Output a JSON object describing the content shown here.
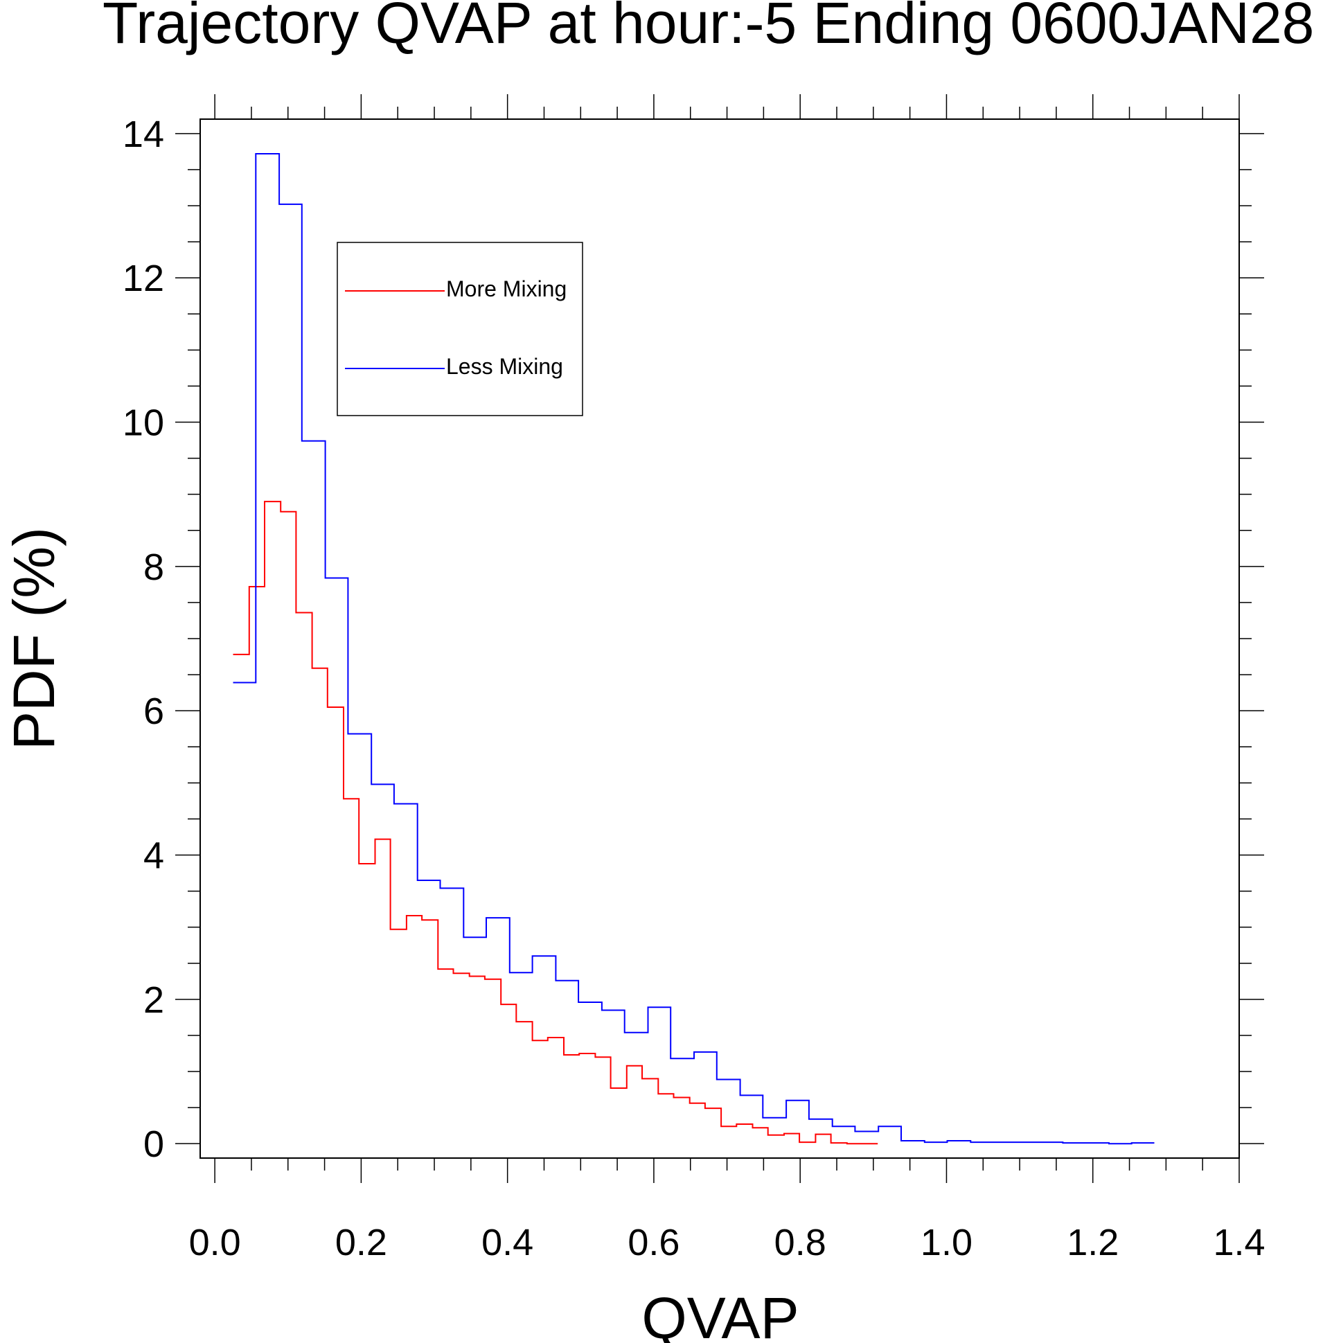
{
  "chart_data": {
    "type": "line",
    "step": true,
    "title": "Trajectory QVAP at hour:-5 Ending 0600JAN28",
    "xlabel": "QVAP",
    "ylabel": "PDF (%)",
    "xlim": [
      -0.02,
      1.4
    ],
    "ylim": [
      -0.2,
      14.2
    ],
    "xticks": [
      "0.0",
      "0.2",
      "0.4",
      "0.6",
      "0.8",
      "1.0",
      "1.2",
      "1.4"
    ],
    "yticks": [
      "0",
      "2",
      "4",
      "6",
      "8",
      "10",
      "12",
      "14"
    ],
    "grid": false,
    "legend_position": "top-left",
    "series": [
      {
        "name": "More Mixing",
        "color": "#ff0000",
        "x": [
          0.025,
          0.047,
          0.068,
          0.09,
          0.111,
          0.133,
          0.154,
          0.176,
          0.197,
          0.219,
          0.24,
          0.262,
          0.283,
          0.305,
          0.326,
          0.348,
          0.369,
          0.391,
          0.412,
          0.434,
          0.455,
          0.477,
          0.498,
          0.52,
          0.541,
          0.563,
          0.584,
          0.606,
          0.627,
          0.649,
          0.67,
          0.692,
          0.713,
          0.735,
          0.756,
          0.778,
          0.799,
          0.821,
          0.842,
          0.864,
          0.885
        ],
        "values": [
          6.78,
          7.72,
          8.9,
          8.76,
          7.36,
          6.59,
          6.05,
          4.78,
          3.88,
          4.22,
          2.97,
          3.16,
          3.1,
          2.42,
          2.36,
          2.32,
          2.28,
          1.93,
          1.69,
          1.43,
          1.47,
          1.23,
          1.25,
          1.2,
          0.77,
          1.08,
          0.9,
          0.69,
          0.64,
          0.56,
          0.49,
          0.24,
          0.27,
          0.22,
          0.12,
          0.14,
          0.02,
          0.13,
          0.01,
          0.0,
          0.0
        ]
      },
      {
        "name": "Less Mixing",
        "color": "#0000ff",
        "x": [
          0.025,
          0.056,
          0.088,
          0.119,
          0.151,
          0.182,
          0.214,
          0.245,
          0.277,
          0.308,
          0.34,
          0.371,
          0.403,
          0.434,
          0.466,
          0.497,
          0.529,
          0.56,
          0.592,
          0.623,
          0.655,
          0.686,
          0.718,
          0.749,
          0.781,
          0.812,
          0.844,
          0.875,
          0.907,
          0.938,
          0.97,
          1.001,
          1.033,
          1.064,
          1.096,
          1.127,
          1.159,
          1.19,
          1.222,
          1.253
        ],
        "values": [
          6.39,
          13.72,
          13.02,
          9.74,
          7.84,
          5.68,
          4.98,
          4.71,
          3.65,
          3.54,
          2.86,
          3.13,
          2.37,
          2.6,
          2.26,
          1.96,
          1.85,
          1.54,
          1.89,
          1.18,
          1.27,
          0.89,
          0.67,
          0.36,
          0.6,
          0.34,
          0.24,
          0.17,
          0.24,
          0.04,
          0.02,
          0.04,
          0.02,
          0.02,
          0.02,
          0.02,
          0.01,
          0.01,
          0.0,
          0.01
        ]
      }
    ]
  }
}
